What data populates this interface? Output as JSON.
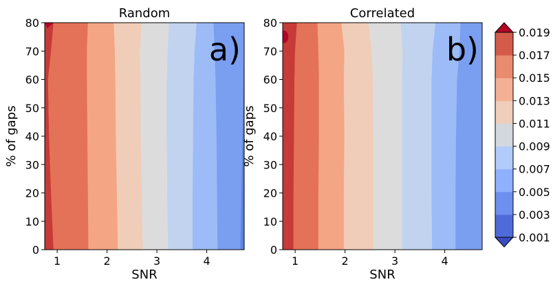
{
  "chart_data": [
    {
      "type": "contour",
      "title": "Random",
      "panel_label": "a)",
      "xlabel": "SNR",
      "ylabel": "% of gaps",
      "xlim": [
        0.75,
        4.75
      ],
      "ylim": [
        0,
        80
      ],
      "xticks": [
        1,
        2,
        3,
        4
      ],
      "yticks": [
        0,
        10,
        20,
        30,
        40,
        50,
        60,
        70,
        80
      ],
      "contour_boundaries": [
        {
          "level_from": 0.019,
          "level_to": 0.017,
          "x_at_y": [
            [
              0,
              0.93
            ],
            [
              20,
              0.88
            ],
            [
              40,
              0.84
            ],
            [
              60,
              0.82
            ],
            [
              70,
              0.88
            ],
            [
              80,
              0.93
            ]
          ]
        },
        {
          "level_from": 0.017,
          "level_to": 0.015,
          "x_at_y": [
            [
              0,
              1.63
            ],
            [
              20,
              1.62
            ],
            [
              40,
              1.61
            ],
            [
              60,
              1.6
            ],
            [
              70,
              1.6
            ],
            [
              80,
              1.62
            ]
          ]
        },
        {
          "level_from": 0.015,
          "level_to": 0.013,
          "x_at_y": [
            [
              0,
              2.22
            ],
            [
              20,
              2.2
            ],
            [
              40,
              2.18
            ],
            [
              60,
              2.17
            ],
            [
              70,
              2.16
            ],
            [
              80,
              2.14
            ]
          ]
        },
        {
          "level_from": 0.013,
          "level_to": 0.011,
          "x_at_y": [
            [
              0,
              2.72
            ],
            [
              20,
              2.7
            ],
            [
              40,
              2.68
            ],
            [
              60,
              2.67
            ],
            [
              70,
              2.66
            ],
            [
              80,
              2.7
            ]
          ]
        },
        {
          "level_from": 0.011,
          "level_to": 0.009,
          "x_at_y": [
            [
              0,
              3.23
            ],
            [
              20,
              3.21
            ],
            [
              40,
              3.2
            ],
            [
              60,
              3.2
            ],
            [
              70,
              3.22
            ],
            [
              80,
              3.25
            ]
          ]
        },
        {
          "level_from": 0.009,
          "level_to": 0.007,
          "x_at_y": [
            [
              0,
              3.72
            ],
            [
              20,
              3.72
            ],
            [
              40,
              3.73
            ],
            [
              60,
              3.74
            ],
            [
              70,
              3.76
            ],
            [
              80,
              3.8
            ]
          ]
        },
        {
          "level_from": 0.007,
          "level_to": 0.005,
          "x_at_y": [
            [
              0,
              4.22
            ],
            [
              20,
              4.21
            ],
            [
              40,
              4.2
            ],
            [
              60,
              4.18
            ],
            [
              70,
              4.16
            ],
            [
              80,
              4.14
            ]
          ]
        },
        {
          "level_from": 0.005,
          "level_to": 0.003,
          "x_at_y": [
            [
              0,
              4.68
            ],
            [
              20,
              4.7
            ],
            [
              40,
              4.72
            ],
            [
              60,
              4.74
            ],
            [
              70,
              4.75
            ],
            [
              80,
              4.75
            ]
          ]
        }
      ]
    },
    {
      "type": "contour",
      "title": "Correlated",
      "panel_label": "b)",
      "xlabel": "SNR",
      "ylabel": "% of gaps",
      "xlim": [
        0.75,
        4.75
      ],
      "ylim": [
        0,
        80
      ],
      "xticks": [
        1,
        2,
        3,
        4
      ],
      "yticks": [
        0,
        10,
        20,
        30,
        40,
        50,
        60,
        70,
        80
      ],
      "contour_boundaries": [
        {
          "level_from": 0.019,
          "level_to": 0.017,
          "x_at_y": [
            [
              0,
              0.97
            ],
            [
              20,
              0.97
            ],
            [
              40,
              0.98
            ],
            [
              60,
              0.99
            ],
            [
              70,
              1.0
            ],
            [
              80,
              1.04
            ]
          ]
        },
        {
          "level_from": 0.017,
          "level_to": 0.015,
          "x_at_y": [
            [
              0,
              1.47
            ],
            [
              20,
              1.47
            ],
            [
              40,
              1.48
            ],
            [
              60,
              1.48
            ],
            [
              70,
              1.47
            ],
            [
              80,
              1.45
            ]
          ]
        },
        {
          "level_from": 0.015,
          "level_to": 0.013,
          "x_at_y": [
            [
              0,
              1.98
            ],
            [
              20,
              1.98
            ],
            [
              40,
              1.99
            ],
            [
              60,
              1.98
            ],
            [
              70,
              1.99
            ],
            [
              80,
              1.93
            ]
          ]
        },
        {
          "level_from": 0.013,
          "level_to": 0.011,
          "x_at_y": [
            [
              0,
              2.57
            ],
            [
              20,
              2.57
            ],
            [
              40,
              2.57
            ],
            [
              60,
              2.56
            ],
            [
              70,
              2.54
            ],
            [
              80,
              2.47
            ]
          ]
        },
        {
          "level_from": 0.011,
          "level_to": 0.009,
          "x_at_y": [
            [
              0,
              3.15
            ],
            [
              20,
              3.15
            ],
            [
              40,
              3.15
            ],
            [
              60,
              3.15
            ],
            [
              70,
              3.16
            ],
            [
              80,
              3.12
            ]
          ]
        },
        {
          "level_from": 0.009,
          "level_to": 0.007,
          "x_at_y": [
            [
              0,
              3.75
            ],
            [
              20,
              3.74
            ],
            [
              40,
              3.74
            ],
            [
              60,
              3.74
            ],
            [
              70,
              3.76
            ],
            [
              80,
              3.82
            ]
          ]
        },
        {
          "level_from": 0.007,
          "level_to": 0.005,
          "x_at_y": [
            [
              0,
              4.22
            ],
            [
              20,
              4.22
            ],
            [
              40,
              4.23
            ],
            [
              60,
              4.25
            ],
            [
              70,
              4.3
            ],
            [
              80,
              4.32
            ]
          ]
        },
        {
          "level_from": 0.005,
          "level_to": 0.003,
          "x_at_y": [
            [
              0,
              4.75
            ],
            [
              20,
              4.75
            ],
            [
              40,
              4.75
            ],
            [
              60,
              4.75
            ],
            [
              70,
              4.75
            ],
            [
              80,
              4.75
            ]
          ]
        }
      ],
      "max_spot": {
        "x": 0.78,
        "y": 75,
        "level": 0.019
      }
    }
  ],
  "colorbar": {
    "levels": [
      0.001,
      0.003,
      0.005,
      0.007,
      0.009,
      0.011,
      0.013,
      0.015,
      0.017,
      0.019
    ],
    "tick_labels": [
      "0.001",
      "0.003",
      "0.005",
      "0.007",
      "0.009",
      "0.011",
      "0.013",
      "0.015",
      "0.017",
      "0.019"
    ],
    "band_colors": [
      "#4f6bd9",
      "#6d8ff0",
      "#8fb0fc",
      "#b1cbfb",
      "#d3d7de",
      "#efcebc",
      "#f4b095",
      "#e98b6e",
      "#d45b4a"
    ],
    "extend_low_color": "#3b4cc0",
    "extend_high_color": "#b40426",
    "max_color": "#b40426",
    "region_colors": [
      "#c63a37",
      "#e47258",
      "#f4a584",
      "#f0cdb8",
      "#dcdcdc",
      "#c2d3f0",
      "#9dbbf6",
      "#7a9ef0",
      "#5c82e5"
    ]
  }
}
